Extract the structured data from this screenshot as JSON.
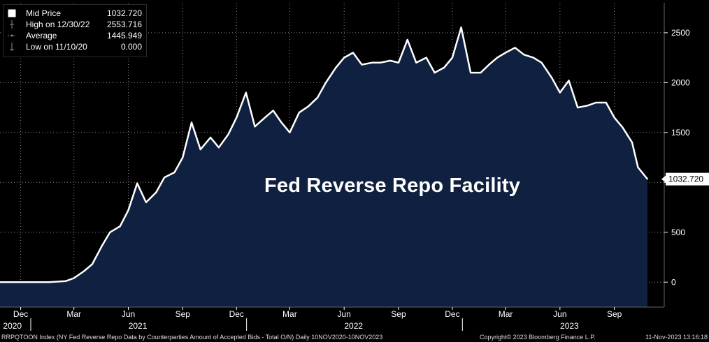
{
  "chart_data": {
    "type": "area",
    "title": "Fed Reverse Repo Facility",
    "x": [
      "2020-11-10",
      "2020-12-01",
      "2021-01-01",
      "2021-02-01",
      "2021-03-01",
      "2021-03-15",
      "2021-04-01",
      "2021-04-15",
      "2021-05-01",
      "2021-05-15",
      "2021-06-01",
      "2021-06-15",
      "2021-06-30",
      "2021-07-15",
      "2021-08-01",
      "2021-08-15",
      "2021-09-01",
      "2021-09-15",
      "2021-09-30",
      "2021-10-15",
      "2021-11-01",
      "2021-11-15",
      "2021-12-01",
      "2021-12-15",
      "2021-12-31",
      "2022-01-15",
      "2022-02-01",
      "2022-02-15",
      "2022-03-01",
      "2022-03-15",
      "2022-03-31",
      "2022-04-15",
      "2022-05-01",
      "2022-05-15",
      "2022-06-01",
      "2022-06-15",
      "2022-06-30",
      "2022-07-15",
      "2022-08-01",
      "2022-08-15",
      "2022-09-01",
      "2022-09-15",
      "2022-09-30",
      "2022-10-15",
      "2022-11-01",
      "2022-11-15",
      "2022-12-01",
      "2022-12-15",
      "2022-12-30",
      "2023-01-15",
      "2023-02-01",
      "2023-02-15",
      "2023-03-01",
      "2023-03-15",
      "2023-03-31",
      "2023-04-15",
      "2023-05-01",
      "2023-05-15",
      "2023-06-01",
      "2023-06-15",
      "2023-06-30",
      "2023-07-15",
      "2023-08-01",
      "2023-08-15",
      "2023-09-01",
      "2023-09-15",
      "2023-09-29",
      "2023-10-15",
      "2023-10-25",
      "2023-11-10"
    ],
    "series": [
      {
        "name": "Mid Price",
        "values": [
          0,
          0,
          0,
          0,
          10,
          40,
          110,
          180,
          360,
          500,
          560,
          720,
          990,
          800,
          900,
          1050,
          1100,
          1250,
          1600,
          1330,
          1450,
          1350,
          1480,
          1650,
          1900,
          1560,
          1650,
          1720,
          1600,
          1500,
          1700,
          1760,
          1850,
          2000,
          2150,
          2250,
          2300,
          2180,
          2200,
          2200,
          2220,
          2200,
          2430,
          2200,
          2250,
          2100,
          2150,
          2250,
          2553.716,
          2100,
          2100,
          2180,
          2250,
          2300,
          2350,
          2280,
          2250,
          2200,
          2050,
          1900,
          2020,
          1750,
          1770,
          1800,
          1800,
          1650,
          1550,
          1400,
          1150,
          1032.72
        ]
      }
    ],
    "xlabel": "",
    "ylabel": "",
    "ylim": [
      -250,
      2800
    ],
    "yticks": [
      0,
      500,
      1000,
      1500,
      2000,
      2500
    ],
    "ytick_labels": [
      "0",
      "500",
      "1000",
      "1500",
      "2000",
      "2500"
    ],
    "month_ticks": [
      {
        "date": "2020-12-15",
        "label": "Dec"
      },
      {
        "date": "2021-03-15",
        "label": "Mar"
      },
      {
        "date": "2021-06-15",
        "label": "Jun"
      },
      {
        "date": "2021-09-15",
        "label": "Sep"
      },
      {
        "date": "2021-12-15",
        "label": "Dec"
      },
      {
        "date": "2022-03-15",
        "label": "Mar"
      },
      {
        "date": "2022-06-15",
        "label": "Jun"
      },
      {
        "date": "2022-09-15",
        "label": "Sep"
      },
      {
        "date": "2022-12-15",
        "label": "Dec"
      },
      {
        "date": "2023-03-15",
        "label": "Mar"
      },
      {
        "date": "2023-06-15",
        "label": "Jun"
      },
      {
        "date": "2023-09-15",
        "label": "Sep"
      }
    ],
    "year_ticks": [
      {
        "date": "2020-12-01",
        "label": "2020"
      },
      {
        "date": "2021-07-01",
        "label": "2021"
      },
      {
        "date": "2022-07-01",
        "label": "2022"
      },
      {
        "date": "2023-07-01",
        "label": "2023"
      }
    ],
    "year_boundaries": [
      "2021-01-01",
      "2022-01-01",
      "2023-01-01"
    ],
    "last_value_label": "1032.720",
    "grid": true,
    "colors": {
      "background": "#000000",
      "area_fill": "#0f2040",
      "line": "#ffffff",
      "grid": "#8a8a8a",
      "axis_text": "#ffffff"
    }
  },
  "legend": {
    "rows": [
      {
        "label": "Mid Price",
        "value": "1032.720"
      },
      {
        "label": "High on 12/30/22",
        "value": "2553.716"
      },
      {
        "label": "Average",
        "value": "1445.949"
      },
      {
        "label": "Low on 11/10/20",
        "value": "0.000"
      }
    ]
  },
  "footer": {
    "left": "RRPQTOON Index (NY Fed Reverse Repo Data by Counterparties Amount of Accepted Bids - Total O/N)  Daily 10NOV2020-10NOV2023",
    "copyright": "Copyright© 2023 Bloomberg Finance L.P.",
    "timestamp": "11-Nov-2023 13:16:18"
  }
}
